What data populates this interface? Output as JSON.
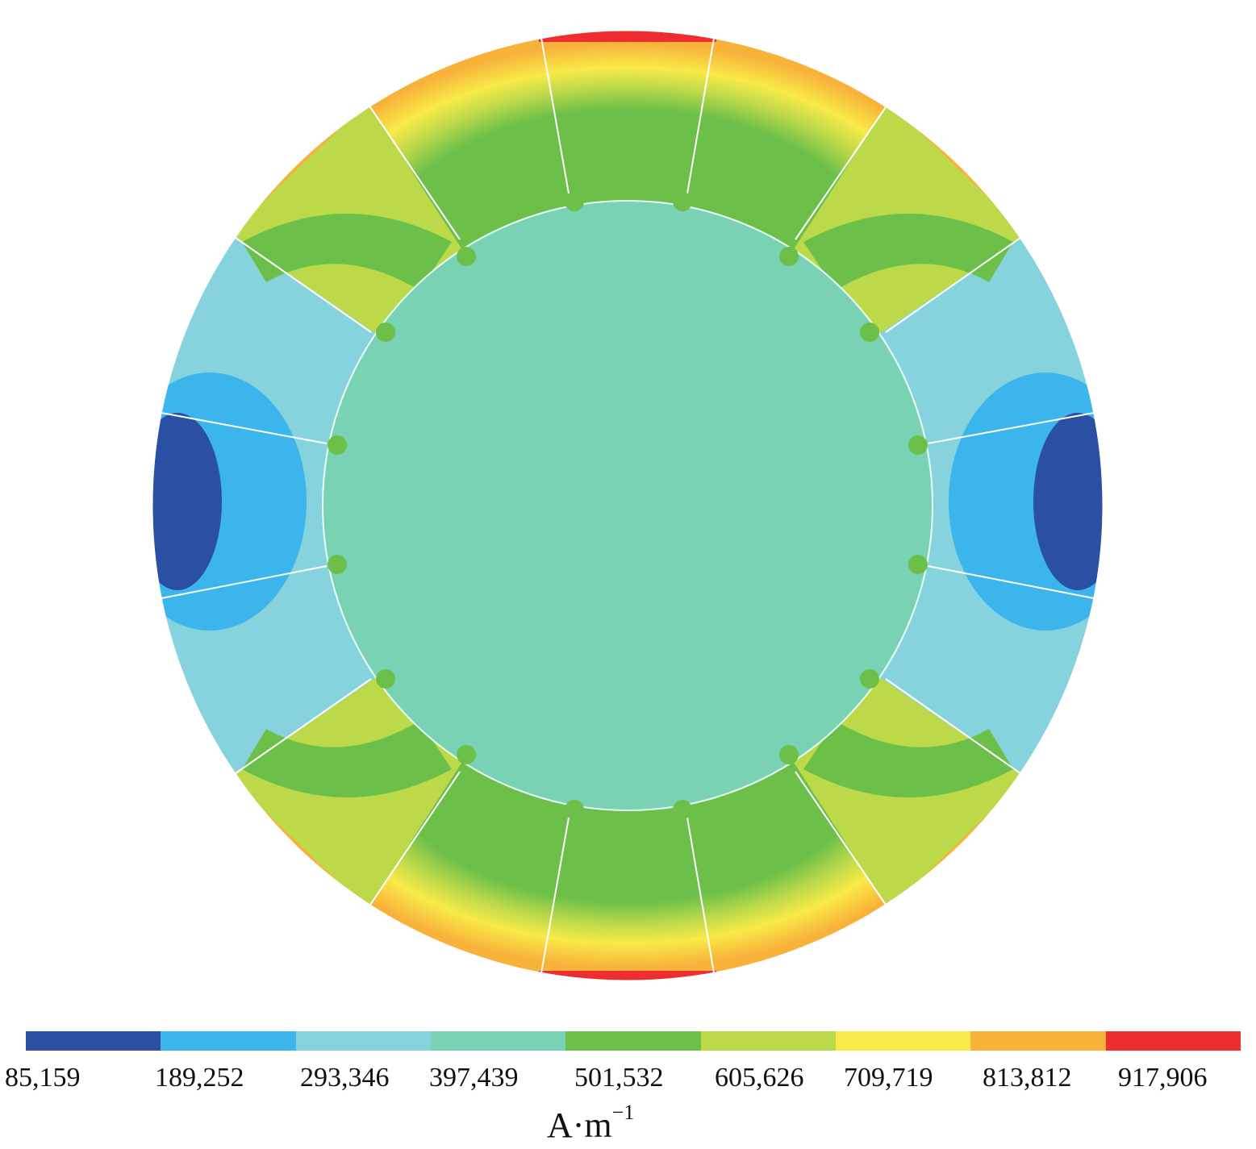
{
  "legend": {
    "colors": [
      "#2a4fa3",
      "#3cb4ec",
      "#87d3dd",
      "#79d2b4",
      "#6cc04a",
      "#bcd94a",
      "#f8ea48",
      "#f8b23a",
      "#ee2e2e"
    ],
    "ticks": [
      "85,159",
      "189,252",
      "293,346",
      "397,439",
      "501,532",
      "605,626",
      "709,719",
      "813,812",
      "917,906"
    ],
    "unit_base": "A·m",
    "unit_exp": "−1"
  }
}
